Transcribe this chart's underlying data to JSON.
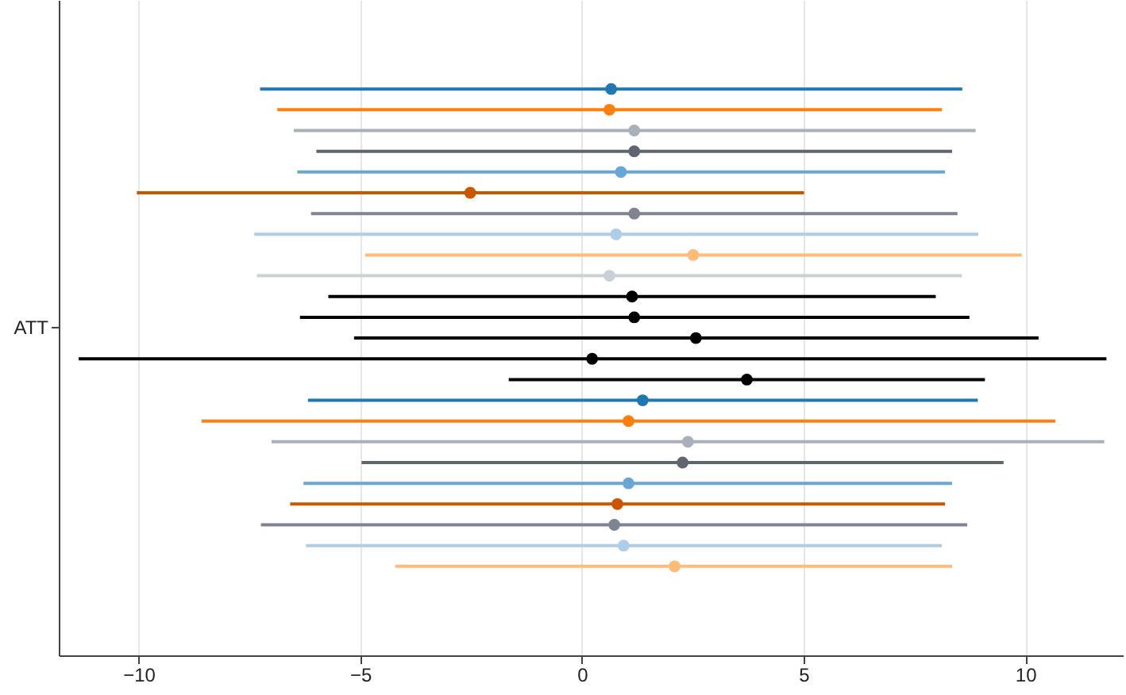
{
  "chart_data": {
    "type": "scatter",
    "orientation": "horizontal",
    "categories": [
      "ATT"
    ],
    "xlim": [
      -11.8,
      12.2
    ],
    "xticks": [
      -10,
      -5,
      0,
      5,
      10
    ],
    "grid": "x",
    "marker": "circle",
    "series": [
      {
        "color": "#1f77b4",
        "values": [
          0.66
        ],
        "errors": [
          [
            -7.26,
            8.58
          ]
        ]
      },
      {
        "color": "#ff7f0e",
        "values": [
          0.62
        ],
        "errors": [
          [
            -6.87,
            8.12
          ]
        ]
      },
      {
        "color": "#aab0bb",
        "values": [
          1.18
        ],
        "errors": [
          [
            -6.5,
            8.88
          ]
        ]
      },
      {
        "color": "#5f6670",
        "values": [
          1.18
        ],
        "errors": [
          [
            -5.99,
            8.35
          ]
        ]
      },
      {
        "color": "#6aa6d4",
        "values": [
          0.88
        ],
        "errors": [
          [
            -6.42,
            8.19
          ]
        ]
      },
      {
        "color": "#cc5500",
        "values": [
          -2.52
        ],
        "errors": [
          [
            -10.04,
            5.01
          ]
        ]
      },
      {
        "color": "#7f8590",
        "values": [
          1.18
        ],
        "errors": [
          [
            -6.11,
            8.47
          ]
        ]
      },
      {
        "color": "#aecde8",
        "values": [
          0.77
        ],
        "errors": [
          [
            -7.39,
            8.94
          ]
        ]
      },
      {
        "color": "#ffbb78",
        "values": [
          2.51
        ],
        "errors": [
          [
            -4.89,
            9.92
          ]
        ]
      },
      {
        "color": "#c8d0da",
        "values": [
          0.62
        ],
        "errors": [
          [
            -7.33,
            8.57
          ]
        ]
      },
      {
        "color": "#000000",
        "values": [
          1.13
        ],
        "errors": [
          [
            -5.72,
            7.98
          ]
        ]
      },
      {
        "color": "#000000",
        "values": [
          1.18
        ],
        "errors": [
          [
            -6.36,
            8.74
          ]
        ]
      },
      {
        "color": "#000000",
        "values": [
          2.57
        ],
        "errors": [
          [
            -5.14,
            10.3
          ]
        ]
      },
      {
        "color": "#000000",
        "values": [
          0.23
        ],
        "errors": [
          [
            -11.35,
            11.83
          ]
        ]
      },
      {
        "color": "#000000",
        "values": [
          3.72
        ],
        "errors": [
          [
            -1.65,
            9.09
          ]
        ]
      },
      {
        "color": "#1f77b4",
        "values": [
          1.37
        ],
        "errors": [
          [
            -6.18,
            8.93
          ]
        ]
      },
      {
        "color": "#ff7f0e",
        "values": [
          1.05
        ],
        "errors": [
          [
            -8.58,
            10.68
          ]
        ]
      },
      {
        "color": "#aab0bb",
        "values": [
          2.39
        ],
        "errors": [
          [
            -7.0,
            11.78
          ]
        ]
      },
      {
        "color": "#5f6670",
        "values": [
          2.27
        ],
        "errors": [
          [
            -4.97,
            9.51
          ]
        ]
      },
      {
        "color": "#6aa6d4",
        "values": [
          1.05
        ],
        "errors": [
          [
            -6.28,
            8.35
          ]
        ]
      },
      {
        "color": "#cc5500",
        "values": [
          0.8
        ],
        "errors": [
          [
            -6.58,
            8.19
          ]
        ]
      },
      {
        "color": "#7f8590",
        "values": [
          0.73
        ],
        "errors": [
          [
            -7.24,
            8.69
          ]
        ]
      },
      {
        "color": "#aecde8",
        "values": [
          0.94
        ],
        "errors": [
          [
            -6.22,
            8.12
          ]
        ]
      },
      {
        "color": "#ffbb78",
        "values": [
          2.09
        ],
        "errors": [
          [
            -4.21,
            8.35
          ]
        ]
      }
    ]
  }
}
